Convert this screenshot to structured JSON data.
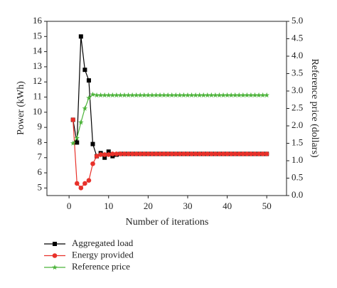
{
  "chart_data": {
    "type": "line",
    "x_label": "Number of iterations",
    "y_label": "Power (kWh)",
    "y2_label": "Reference price (dollars)",
    "x": [
      1,
      2,
      3,
      4,
      5,
      6,
      7,
      8,
      9,
      10,
      11,
      12,
      13,
      14,
      15,
      16,
      17,
      18,
      19,
      20,
      21,
      22,
      23,
      24,
      25,
      26,
      27,
      28,
      29,
      30,
      31,
      32,
      33,
      34,
      35,
      36,
      37,
      38,
      39,
      40,
      41,
      42,
      43,
      44,
      45,
      46,
      47,
      48,
      49,
      50
    ],
    "xlim": [
      -5.6,
      55
    ],
    "xticks": [
      0,
      10,
      20,
      30,
      40,
      50
    ],
    "ylim": [
      4.5,
      16
    ],
    "yticks": [
      5,
      6,
      7,
      8,
      9,
      10,
      11,
      12,
      13,
      14,
      15,
      16
    ],
    "y2lim": [
      0,
      5
    ],
    "y2ticks": [
      {
        "value": 0,
        "label": "0.0"
      },
      0.5,
      {
        "value": 1,
        "label": "1.0"
      },
      1.5,
      {
        "value": 2,
        "label": "2.0"
      },
      2.5,
      {
        "value": 3,
        "label": "3.0"
      },
      3.5,
      {
        "value": 4,
        "label": "4.0"
      },
      4.5,
      {
        "value": 5,
        "label": "5.0"
      }
    ],
    "series": [
      {
        "name": "Aggregated load",
        "color": "#000000",
        "marker": "square",
        "values": [
          9.5,
          8.0,
          15.0,
          12.8,
          12.1,
          7.9,
          7.1,
          7.3,
          7.0,
          7.4,
          7.1,
          7.2,
          7.25,
          7.25,
          7.25,
          7.25,
          7.25,
          7.25,
          7.25,
          7.25,
          7.25,
          7.25,
          7.25,
          7.25,
          7.25,
          7.25,
          7.25,
          7.25,
          7.25,
          7.25,
          7.25,
          7.25,
          7.25,
          7.25,
          7.25,
          7.25,
          7.25,
          7.25,
          7.25,
          7.25,
          7.25,
          7.25,
          7.25,
          7.25,
          7.25,
          7.25,
          7.25,
          7.25,
          7.25,
          7.25
        ]
      },
      {
        "name": "Energy provided",
        "color": "#e8312a",
        "marker": "circle",
        "values": [
          9.5,
          5.3,
          5.0,
          5.3,
          5.5,
          6.6,
          7.1,
          7.2,
          7.2,
          7.2,
          7.25,
          7.25,
          7.25,
          7.25,
          7.25,
          7.25,
          7.25,
          7.25,
          7.25,
          7.25,
          7.25,
          7.25,
          7.25,
          7.25,
          7.25,
          7.25,
          7.25,
          7.25,
          7.25,
          7.25,
          7.25,
          7.25,
          7.25,
          7.25,
          7.25,
          7.25,
          7.25,
          7.25,
          7.25,
          7.25,
          7.25,
          7.25,
          7.25,
          7.25,
          7.25,
          7.25,
          7.25,
          7.25,
          7.25,
          7.25
        ]
      },
      {
        "name": "Reference price",
        "color": "#4cb33a",
        "marker": "star",
        "axis": "y2",
        "values": [
          1.5,
          1.65,
          2.1,
          2.5,
          2.8,
          2.9,
          2.88,
          2.88,
          2.88,
          2.88,
          2.88,
          2.88,
          2.88,
          2.88,
          2.88,
          2.88,
          2.88,
          2.88,
          2.88,
          2.88,
          2.88,
          2.88,
          2.88,
          2.88,
          2.88,
          2.88,
          2.88,
          2.88,
          2.88,
          2.88,
          2.88,
          2.88,
          2.88,
          2.88,
          2.88,
          2.88,
          2.88,
          2.88,
          2.88,
          2.88,
          2.88,
          2.88,
          2.88,
          2.88,
          2.88,
          2.88,
          2.88,
          2.88,
          2.88,
          2.88
        ]
      }
    ]
  }
}
